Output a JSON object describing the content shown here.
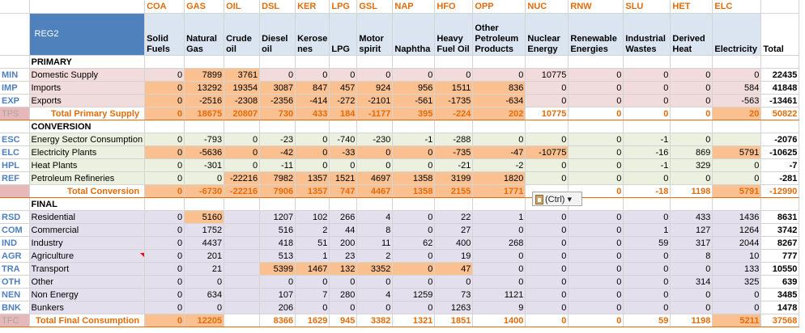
{
  "region_title": "REG2",
  "columns": [
    {
      "code": "COA",
      "name": "Solid Fuels"
    },
    {
      "code": "GAS",
      "name": "Natural Gas"
    },
    {
      "code": "OIL",
      "name": "Crude oil"
    },
    {
      "code": "DSL",
      "name": "Diesel oil"
    },
    {
      "code": "KER",
      "name": "Kerose nes"
    },
    {
      "code": "LPG",
      "name": "LPG"
    },
    {
      "code": "GSL",
      "name": "Motor spirit"
    },
    {
      "code": "NAP",
      "name": "Naphtha"
    },
    {
      "code": "HFO",
      "name": "Heavy Fuel Oil"
    },
    {
      "code": "OPP",
      "name": "Other Petroleum Products"
    },
    {
      "code": "NUC",
      "name": "Nuclear Energy"
    },
    {
      "code": "RNW",
      "name": "Renewable Energies"
    },
    {
      "code": "SLU",
      "name": "Industrial Wastes"
    },
    {
      "code": "HET",
      "name": "Derived Heat"
    },
    {
      "code": "ELC",
      "name": "Electricity"
    }
  ],
  "total_header": "Total",
  "sections": [
    {
      "key": "prim",
      "title": "PRIMARY",
      "rows": [
        {
          "code": "MIN",
          "label": "Domestic Supply",
          "values": [
            "0",
            "7899",
            "3761",
            "0",
            "0",
            "0",
            "0",
            "0",
            "0",
            "0",
            "10775",
            "0",
            "0",
            "0",
            "0"
          ],
          "total": "22435",
          "hl": [
            1,
            2
          ]
        },
        {
          "code": "IMP",
          "label": "Imports",
          "values": [
            "0",
            "13292",
            "19354",
            "3087",
            "847",
            "457",
            "924",
            "956",
            "1511",
            "836",
            "0",
            "0",
            "0",
            "0",
            "584"
          ],
          "total": "41848",
          "hl": [
            0,
            1,
            2,
            3,
            4,
            5,
            6,
            7,
            8,
            9
          ]
        },
        {
          "code": "EXP",
          "label": "Exports",
          "values": [
            "0",
            "-2516",
            "-2308",
            "-2356",
            "-414",
            "-272",
            "-2101",
            "-561",
            "-1735",
            "-634",
            "0",
            "0",
            "0",
            "0",
            "-563"
          ],
          "total": "-13461",
          "hl": [
            0,
            1,
            2,
            3,
            4,
            5,
            6,
            7,
            8,
            9
          ]
        }
      ],
      "total": {
        "code": "TPS",
        "label": "Total Primary Supply",
        "values": [
          "0",
          "18675",
          "20807",
          "730",
          "433",
          "184",
          "-1177",
          "395",
          "-224",
          "202",
          "10775",
          "0",
          "0",
          "0",
          "20"
        ],
        "total": "50822",
        "hl": [
          0,
          1,
          2,
          3,
          4,
          5,
          6,
          7,
          8,
          9,
          14
        ]
      }
    },
    {
      "key": "conv",
      "title": "CONVERSION",
      "rows": [
        {
          "code": "ESC",
          "label": "Energy Sector Consumption",
          "values": [
            "0",
            "-793",
            "0",
            "-23",
            "0",
            "-740",
            "-230",
            "-1",
            "-288",
            "0",
            "0",
            "0",
            "-1",
            "0",
            ""
          ],
          "total": "-2076",
          "hl": []
        },
        {
          "code": "ELC",
          "label": "Electricity Plants",
          "values": [
            "0",
            "-5636",
            "0",
            "-42",
            "0",
            "-33",
            "0",
            "0",
            "-735",
            "-47",
            "-10775",
            "0",
            "-16",
            "869",
            "5791"
          ],
          "total": "-10625",
          "hl": [
            0,
            1,
            2,
            3,
            4,
            5,
            6,
            7,
            8,
            9,
            10,
            14
          ]
        },
        {
          "code": "HPL",
          "label": "Heat Plants",
          "values": [
            "0",
            "-301",
            "0",
            "-11",
            "0",
            "0",
            "0",
            "0",
            "-21",
            "-2",
            "0",
            "0",
            "-1",
            "329",
            "0"
          ],
          "total": "-7",
          "hl": []
        },
        {
          "code": "REF",
          "label": "Petroleum Refineries",
          "values": [
            "0",
            "0",
            "-22216",
            "7982",
            "1357",
            "1521",
            "4697",
            "1358",
            "3199",
            "1820",
            "0",
            "0",
            "0",
            "0",
            "0"
          ],
          "total": "-281",
          "hl": [
            2,
            3,
            4,
            5,
            6,
            7,
            8,
            9
          ]
        }
      ],
      "total": {
        "code": "",
        "label": "Total Conversion",
        "values": [
          "0",
          "-6730",
          "-22216",
          "7906",
          "1357",
          "747",
          "4467",
          "1358",
          "2155",
          "1771",
          "",
          "0",
          "-18",
          "1198",
          "5791"
        ],
        "total": "-12990",
        "hl": [
          0,
          1,
          2,
          3,
          4,
          5,
          6,
          7,
          8,
          9,
          14
        ]
      }
    },
    {
      "key": "fin",
      "title": "FINAL",
      "rows": [
        {
          "code": "RSD",
          "label": "Residential",
          "values": [
            "0",
            "5160",
            "",
            "1207",
            "102",
            "266",
            "4",
            "0",
            "22",
            "1",
            "0",
            "0",
            "0",
            "433",
            "1436"
          ],
          "total": "8631",
          "hl": [
            1
          ]
        },
        {
          "code": "COM",
          "label": "Commercial",
          "values": [
            "0",
            "1752",
            "",
            "516",
            "2",
            "44",
            "8",
            "0",
            "27",
            "0",
            "0",
            "0",
            "1",
            "127",
            "1264"
          ],
          "total": "3742",
          "hl": []
        },
        {
          "code": "IND",
          "label": "Industry",
          "values": [
            "0",
            "4437",
            "",
            "418",
            "51",
            "200",
            "11",
            "62",
            "400",
            "268",
            "0",
            "0",
            "59",
            "317",
            "2044"
          ],
          "total": "8267",
          "hl": []
        },
        {
          "code": "AGR",
          "label": "Agriculture",
          "values": [
            "0",
            "201",
            "",
            "513",
            "1",
            "23",
            "2",
            "0",
            "19",
            "0",
            "0",
            "0",
            "0",
            "8",
            "10"
          ],
          "total": "777",
          "hl": []
        },
        {
          "code": "TRA",
          "label": "Transport",
          "values": [
            "0",
            "21",
            "",
            "5399",
            "1467",
            "132",
            "3352",
            "0",
            "47",
            "0",
            "0",
            "0",
            "0",
            "0",
            "133"
          ],
          "total": "10550",
          "hl": [
            3,
            4,
            5,
            6,
            7,
            8
          ]
        },
        {
          "code": "OTH",
          "label": "Other",
          "values": [
            "0",
            "0",
            "",
            "0",
            "0",
            "0",
            "0",
            "0",
            "0",
            "0",
            "0",
            "0",
            "0",
            "314",
            "325"
          ],
          "total": "639",
          "hl": []
        },
        {
          "code": "NEN",
          "label": "Non Energy",
          "values": [
            "0",
            "634",
            "",
            "107",
            "7",
            "280",
            "4",
            "1259",
            "73",
            "1121",
            "0",
            "0",
            "0",
            "0",
            "0"
          ],
          "total": "3485",
          "hl": []
        },
        {
          "code": "BNK",
          "label": "Bunkers",
          "values": [
            "0",
            "0",
            "",
            "206",
            "0",
            "0",
            "0",
            "0",
            "1263",
            "9",
            "0",
            "0",
            "0",
            "0",
            "0"
          ],
          "total": "1478",
          "hl": []
        }
      ],
      "total": {
        "code": "TFC",
        "label": "Total Final Consumption",
        "values": [
          "0",
          "12205",
          "",
          "8366",
          "1629",
          "945",
          "3382",
          "1321",
          "1851",
          "1400",
          "0",
          "0",
          "59",
          "1198",
          "5211"
        ],
        "total": "37568",
        "hl": [
          0,
          1,
          14
        ]
      }
    }
  ],
  "paste_options_tag": "(Ctrl)",
  "paste_options_dropdown": "▾"
}
